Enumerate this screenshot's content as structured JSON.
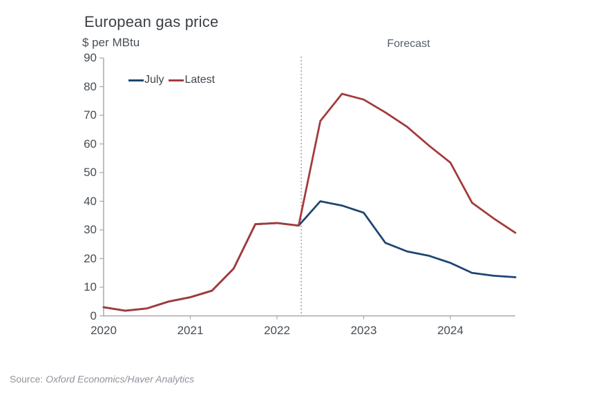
{
  "header": {
    "title": "European gas price",
    "unit_label": "$ per MBtu",
    "forecast_label": "Forecast"
  },
  "legend": [
    {
      "label": "July",
      "color": "#1d4670"
    },
    {
      "label": "Latest",
      "color": "#a33b3b"
    }
  ],
  "source": {
    "prefix": "Source: ",
    "text": "Oxford Economics/Haver Analytics"
  },
  "chart_data": {
    "type": "line",
    "title": "European gas price",
    "ylabel": "$ per MBtu",
    "annotation": "Forecast",
    "x_unit": "year (quarterly points)",
    "x": [
      2020.0,
      2020.25,
      2020.5,
      2020.75,
      2021.0,
      2021.25,
      2021.5,
      2021.75,
      2022.0,
      2022.25,
      2022.5,
      2022.75,
      2023.0,
      2023.25,
      2023.5,
      2023.75,
      2024.0,
      2024.25,
      2024.5,
      2024.75
    ],
    "series": [
      {
        "name": "July",
        "color": "#1d4670",
        "values": [
          3,
          1.8,
          2.6,
          5,
          6.5,
          8.8,
          16.5,
          32,
          32.4,
          31.5,
          40,
          38.5,
          36,
          25.5,
          22.5,
          21,
          18.5,
          15,
          14,
          13.5
        ]
      },
      {
        "name": "Latest",
        "color": "#a33b3b",
        "values": [
          3,
          1.8,
          2.6,
          5,
          6.5,
          8.8,
          16.5,
          32,
          32.4,
          31.5,
          68,
          77.5,
          75.5,
          71,
          66,
          59.5,
          53.5,
          39.5,
          34,
          29
        ]
      }
    ],
    "ylim": [
      0,
      90
    ],
    "yticks": [
      0,
      10,
      20,
      30,
      40,
      50,
      60,
      70,
      80,
      90
    ],
    "xticks": [
      2020,
      2021,
      2022,
      2023,
      2024
    ],
    "forecast_divider_x": 2022.28,
    "legend_position": "top-left inside plot",
    "grid": "off",
    "axis_color": "#a8a8a8",
    "divider_color": "#7a7a7a"
  }
}
